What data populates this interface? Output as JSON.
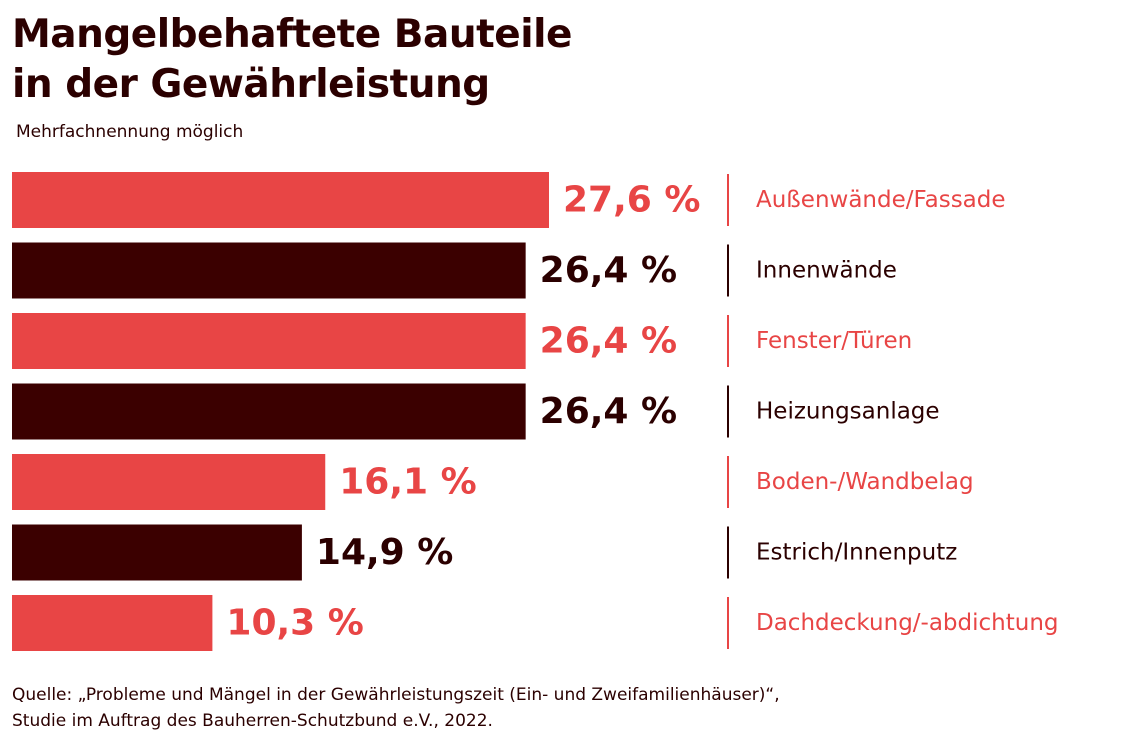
{
  "header": {
    "title_line1": "Mangelbehaftete Bauteile",
    "title_line2": "in der Gewährleistung",
    "subtitle": "Mehrfachnennung möglich"
  },
  "colors": {
    "red": "#e84545",
    "dark": "#3b0000",
    "text": "#2b0000"
  },
  "chart_data": {
    "type": "bar",
    "orientation": "horizontal",
    "categories": [
      "Außenwände/Fassade",
      "Innenwände",
      "Fenster/Türen",
      "Heizungsanlage",
      "Boden-/Wandbelag",
      "Estrich/Innenputz",
      "Dachdeckung/-abdichtung"
    ],
    "values": [
      27.6,
      26.4,
      26.4,
      26.4,
      16.1,
      14.9,
      10.3
    ],
    "value_labels": [
      "27,6 %",
      "26,4 %",
      "26,4 %",
      "26,4 %",
      "16,1 %",
      "14,9 %",
      "10,3 %"
    ],
    "bar_colors": [
      "#e84545",
      "#3b0000",
      "#e84545",
      "#3b0000",
      "#e84545",
      "#3b0000",
      "#e84545"
    ],
    "xlim": [
      0,
      27.6
    ],
    "grid": false,
    "legend": "none"
  },
  "footer": {
    "source_line1": "Quelle: „Probleme und Mängel in der Gewährleistungszeit (Ein- und Zweifamilienhäuser)“,",
    "source_line2": "Studie im Auftrag des Bauherren-Schutzbund e.V., 2022."
  }
}
